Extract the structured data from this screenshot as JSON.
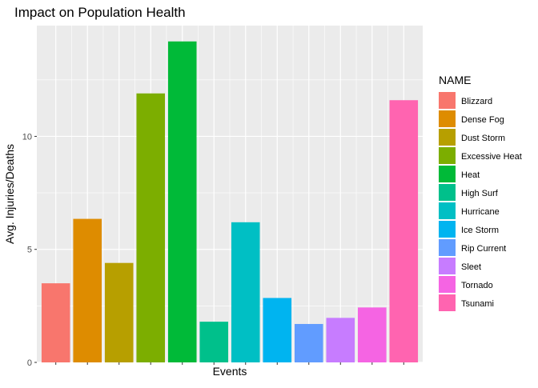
{
  "chart_data": {
    "type": "bar",
    "title": "Impact on Population Health",
    "xlabel": "Events",
    "ylabel": "Avg. Injuries/Deaths",
    "categories": [
      "Blizzard",
      "Dense Fog",
      "Dust Storm",
      "Excessive Heat",
      "Heat",
      "High Surf",
      "Hurricane",
      "Ice Storm",
      "Rip Current",
      "Sleet",
      "Tornado",
      "Tsunami"
    ],
    "values": [
      3.5,
      6.35,
      4.4,
      11.9,
      14.2,
      1.8,
      6.2,
      2.85,
      1.7,
      1.97,
      2.43,
      11.6
    ],
    "colors": [
      "#F8766D",
      "#DE8C00",
      "#B79F00",
      "#7CAE00",
      "#00BA38",
      "#00C08B",
      "#00BFC4",
      "#00B4F0",
      "#619CFF",
      "#C77CFF",
      "#F564E3",
      "#FF64B0"
    ],
    "ylim": [
      0,
      14.9
    ],
    "yticks": [
      0,
      5,
      10
    ],
    "ytick_labels": [
      "0",
      "5",
      "10"
    ],
    "legend": {
      "title": "NAME",
      "position": "right"
    },
    "grid": true,
    "panel_background": "#EBEBEB",
    "grid_color": "#FFFFFF"
  }
}
